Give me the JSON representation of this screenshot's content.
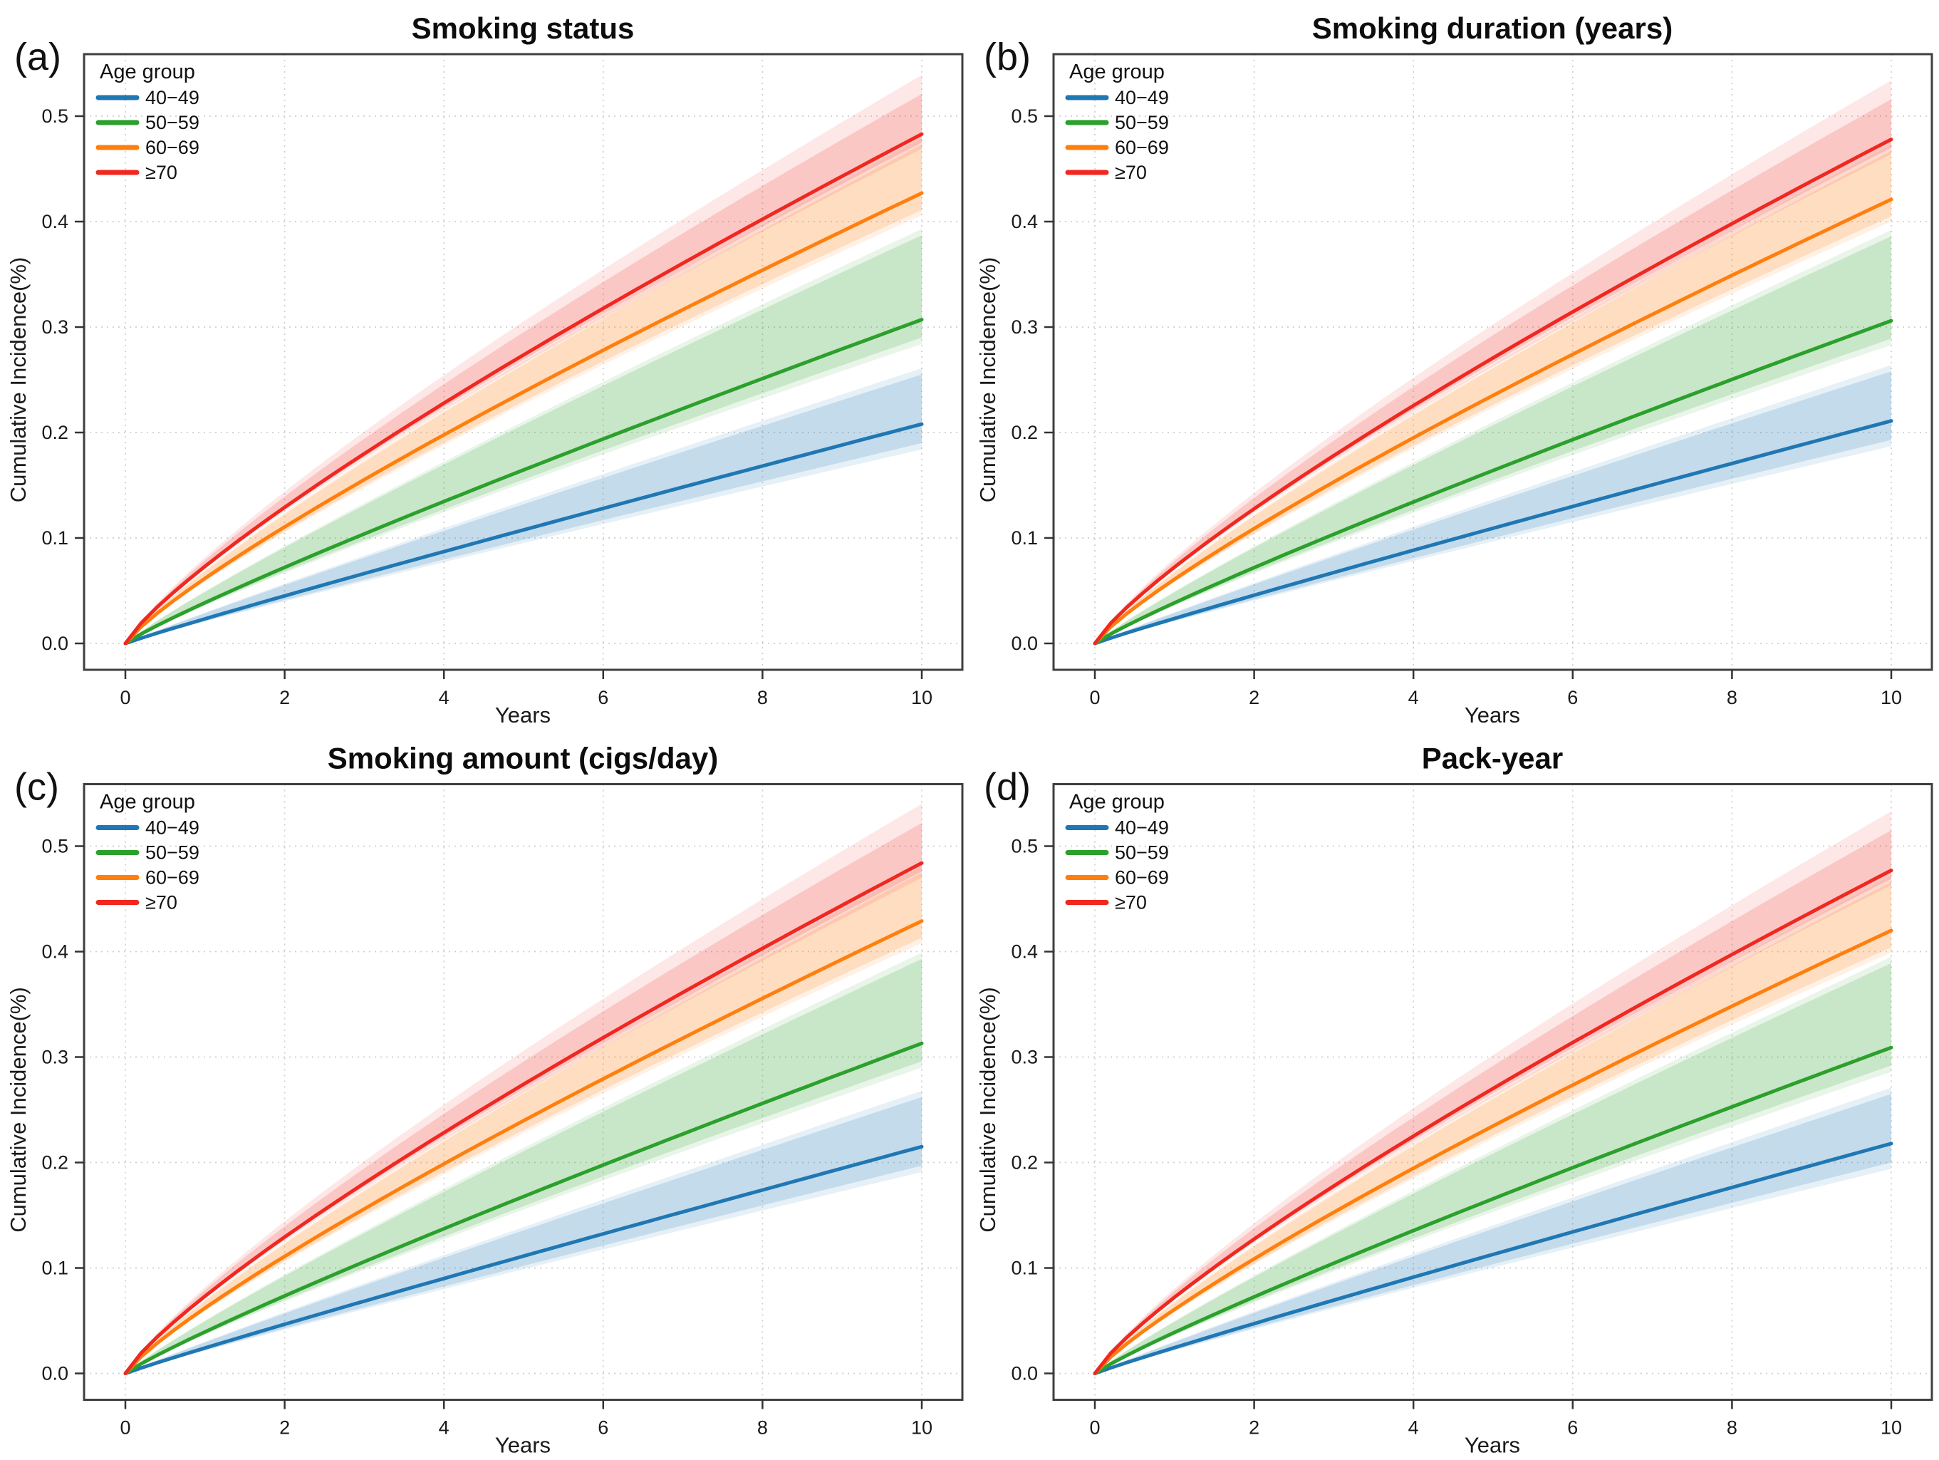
{
  "figure": {
    "background": "#ffffff",
    "frame_color": "#3f3f3f",
    "grid_color": "#cfcfcf",
    "tick_color": "#333333",
    "band_alpha_inner": 0.17,
    "band_alpha_outer": 0.11
  },
  "axes": {
    "x_label": "Years",
    "y_label": "Cumulative Incidence(%)",
    "x_ticks": [
      "0",
      "2",
      "4",
      "6",
      "8",
      "10"
    ],
    "x_tick_values": [
      0,
      2,
      4,
      6,
      8,
      10
    ],
    "y_ticks": [
      "0.0",
      "0.1",
      "0.2",
      "0.3",
      "0.4",
      "0.5"
    ],
    "y_tick_values": [
      0,
      0.1,
      0.2,
      0.3,
      0.4,
      0.5
    ],
    "x_range": [
      0,
      10
    ],
    "y_range": [
      0,
      0.5
    ]
  },
  "legend": {
    "title": "Age group",
    "entries": [
      {
        "label": "40−49",
        "color": "#1f77b4"
      },
      {
        "label": "50−59",
        "color": "#2ca02c"
      },
      {
        "label": "60−69",
        "color": "#ff7f0e"
      },
      {
        "label": "≥70",
        "color": "#f02820"
      }
    ]
  },
  "panels": [
    {
      "letter": "(a)",
      "title": "Smoking status"
    },
    {
      "letter": "(b)",
      "title": "Smoking duration (years)"
    },
    {
      "letter": "(c)",
      "title": "Smoking amount (cigs/day)"
    },
    {
      "letter": "(d)",
      "title": "Pack-year"
    }
  ],
  "chart_data": [
    {
      "type": "line",
      "title": "Smoking status",
      "xlabel": "Years",
      "ylabel": "Cumulative Incidence(%)",
      "x": [
        0,
        2,
        4,
        6,
        8,
        10
      ],
      "ylim": [
        0,
        0.5
      ],
      "grid": true,
      "legend_position": "upper-left",
      "series": [
        {
          "name": "40−49",
          "color": "#1f77b4",
          "values": [
            0,
            0.045,
            0.087,
            0.128,
            0.168,
            0.208
          ],
          "end": 0.208,
          "shape_exponent": 0.95,
          "ci_inner_offsets": [
            0.018,
            0.047
          ],
          "ci_outer_offsets": [
            0.024,
            0.053
          ]
        },
        {
          "name": "50−59",
          "color": "#2ca02c",
          "values": [
            0,
            0.072,
            0.135,
            0.194,
            0.251,
            0.307
          ],
          "end": 0.307,
          "shape_exponent": 0.9,
          "ci_inner_offsets": [
            0.017,
            0.08
          ],
          "ci_outer_offsets": [
            0.023,
            0.086
          ]
        },
        {
          "name": "60−69",
          "color": "#ff7f0e",
          "values": [
            0,
            0.11,
            0.198,
            0.278,
            0.354,
            0.427
          ],
          "end": 0.427,
          "shape_exponent": 0.84,
          "ci_inner_offsets": [
            0.016,
            0.046
          ],
          "ci_outer_offsets": [
            0.021,
            0.052
          ]
        },
        {
          "name": "≥70",
          "color": "#f02820",
          "values": [
            0,
            0.129,
            0.228,
            0.318,
            0.402,
            0.483
          ],
          "end": 0.483,
          "shape_exponent": 0.82,
          "ci_inner_offsets": [
            0.008,
            0.038
          ],
          "ci_outer_offsets": [
            0.014,
            0.056
          ]
        }
      ]
    },
    {
      "type": "line",
      "title": "Smoking duration (years)",
      "xlabel": "Years",
      "ylabel": "Cumulative Incidence(%)",
      "x": [
        0,
        2,
        4,
        6,
        8,
        10
      ],
      "ylim": [
        0,
        0.5
      ],
      "grid": true,
      "legend_position": "upper-left",
      "series": [
        {
          "name": "40−49",
          "color": "#1f77b4",
          "values": [
            0,
            0.046,
            0.088,
            0.13,
            0.171,
            0.211
          ],
          "end": 0.211,
          "shape_exponent": 0.95,
          "ci_inner_offsets": [
            0.018,
            0.047
          ],
          "ci_outer_offsets": [
            0.024,
            0.053
          ]
        },
        {
          "name": "50−59",
          "color": "#2ca02c",
          "values": [
            0,
            0.072,
            0.134,
            0.193,
            0.25,
            0.306
          ],
          "end": 0.306,
          "shape_exponent": 0.9,
          "ci_inner_offsets": [
            0.017,
            0.08
          ],
          "ci_outer_offsets": [
            0.023,
            0.086
          ]
        },
        {
          "name": "60−69",
          "color": "#ff7f0e",
          "values": [
            0,
            0.109,
            0.195,
            0.274,
            0.349,
            0.421
          ],
          "end": 0.421,
          "shape_exponent": 0.84,
          "ci_inner_offsets": [
            0.016,
            0.046
          ],
          "ci_outer_offsets": [
            0.021,
            0.052
          ]
        },
        {
          "name": "≥70",
          "color": "#f02820",
          "values": [
            0,
            0.128,
            0.226,
            0.315,
            0.398,
            0.478
          ],
          "end": 0.478,
          "shape_exponent": 0.82,
          "ci_inner_offsets": [
            0.008,
            0.038
          ],
          "ci_outer_offsets": [
            0.014,
            0.056
          ]
        }
      ]
    },
    {
      "type": "line",
      "title": "Smoking amount (cigs/day)",
      "xlabel": "Years",
      "ylabel": "Cumulative Incidence(%)",
      "x": [
        0,
        2,
        4,
        6,
        8,
        10
      ],
      "ylim": [
        0,
        0.5
      ],
      "grid": true,
      "legend_position": "upper-left",
      "series": [
        {
          "name": "40−49",
          "color": "#1f77b4",
          "values": [
            0,
            0.047,
            0.09,
            0.132,
            0.174,
            0.215
          ],
          "end": 0.215,
          "shape_exponent": 0.95,
          "ci_inner_offsets": [
            0.018,
            0.047
          ],
          "ci_outer_offsets": [
            0.024,
            0.053
          ]
        },
        {
          "name": "50−59",
          "color": "#2ca02c",
          "values": [
            0,
            0.074,
            0.137,
            0.198,
            0.256,
            0.313
          ],
          "end": 0.313,
          "shape_exponent": 0.9,
          "ci_inner_offsets": [
            0.017,
            0.08
          ],
          "ci_outer_offsets": [
            0.023,
            0.086
          ]
        },
        {
          "name": "60−69",
          "color": "#ff7f0e",
          "values": [
            0,
            0.111,
            0.199,
            0.279,
            0.356,
            0.429
          ],
          "end": 0.429,
          "shape_exponent": 0.84,
          "ci_inner_offsets": [
            0.016,
            0.046
          ],
          "ci_outer_offsets": [
            0.021,
            0.052
          ]
        },
        {
          "name": "≥70",
          "color": "#f02820",
          "values": [
            0,
            0.129,
            0.229,
            0.318,
            0.403,
            0.484
          ],
          "end": 0.484,
          "shape_exponent": 0.82,
          "ci_inner_offsets": [
            0.008,
            0.038
          ],
          "ci_outer_offsets": [
            0.014,
            0.056
          ]
        }
      ]
    },
    {
      "type": "line",
      "title": "Pack-year",
      "xlabel": "Years",
      "ylabel": "Cumulative Incidence(%)",
      "x": [
        0,
        2,
        4,
        6,
        8,
        10
      ],
      "ylim": [
        0,
        0.5
      ],
      "grid": true,
      "legend_position": "upper-left",
      "series": [
        {
          "name": "40−49",
          "color": "#1f77b4",
          "values": [
            0,
            0.047,
            0.091,
            0.134,
            0.176,
            0.218
          ],
          "end": 0.218,
          "shape_exponent": 0.95,
          "ci_inner_offsets": [
            0.018,
            0.047
          ],
          "ci_outer_offsets": [
            0.024,
            0.053
          ]
        },
        {
          "name": "50−59",
          "color": "#2ca02c",
          "values": [
            0,
            0.073,
            0.135,
            0.195,
            0.253,
            0.309
          ],
          "end": 0.309,
          "shape_exponent": 0.9,
          "ci_inner_offsets": [
            0.017,
            0.08
          ],
          "ci_outer_offsets": [
            0.023,
            0.086
          ]
        },
        {
          "name": "60−69",
          "color": "#ff7f0e",
          "values": [
            0,
            0.109,
            0.195,
            0.274,
            0.348,
            0.42
          ],
          "end": 0.42,
          "shape_exponent": 0.84,
          "ci_inner_offsets": [
            0.016,
            0.046
          ],
          "ci_outer_offsets": [
            0.021,
            0.052
          ]
        },
        {
          "name": "≥70",
          "color": "#f02820",
          "values": [
            0,
            0.128,
            0.225,
            0.314,
            0.397,
            0.477
          ],
          "end": 0.477,
          "shape_exponent": 0.82,
          "ci_inner_offsets": [
            0.008,
            0.038
          ],
          "ci_outer_offsets": [
            0.014,
            0.056
          ]
        }
      ]
    }
  ]
}
